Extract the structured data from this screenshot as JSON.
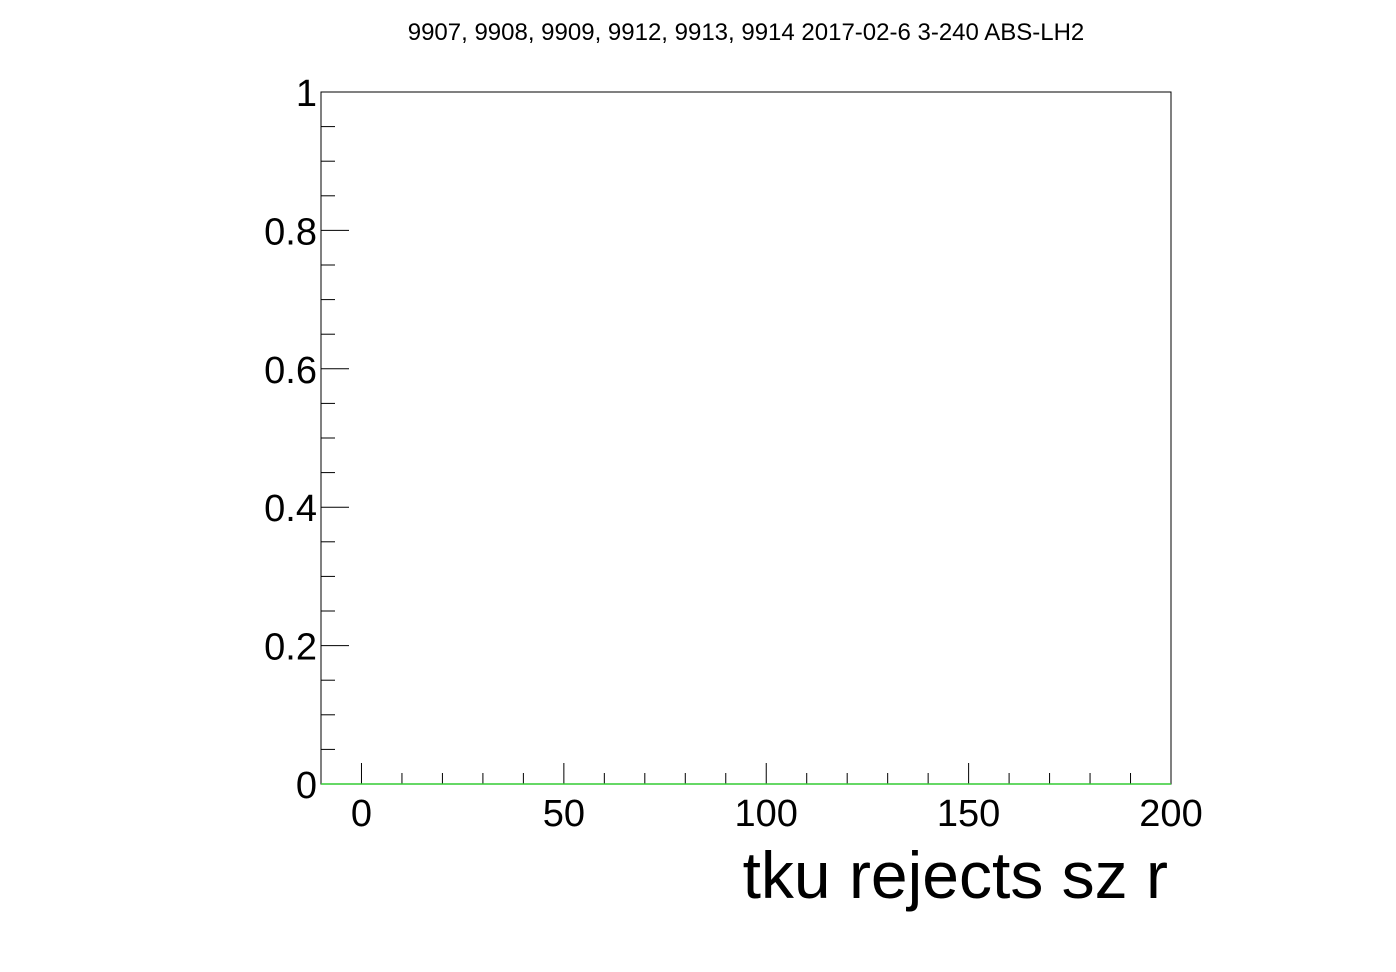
{
  "chart_data": {
    "type": "line",
    "title": "9907, 9908, 9909, 9912, 9913, 9914 2017-02-6 3-240 ABS-LH2",
    "xlabel": "tku rejects sz r",
    "ylabel": "",
    "xlim": [
      -10,
      200
    ],
    "ylim": [
      0,
      1
    ],
    "x_ticks": [
      0,
      50,
      100,
      150,
      200
    ],
    "x_tick_labels": [
      "0",
      "50",
      "100",
      "150",
      "200"
    ],
    "y_ticks": [
      0,
      0.2,
      0.4,
      0.6,
      0.8,
      1
    ],
    "y_tick_labels": [
      "0",
      "0.2",
      "0.4",
      "0.6",
      "0.8",
      "1"
    ],
    "x_minor_step": 10,
    "y_minor_step": 0.05,
    "grid": false,
    "series": [
      {
        "x": [
          -10,
          200
        ],
        "values": [
          0,
          0
        ],
        "color": "#33cc33"
      }
    ]
  }
}
